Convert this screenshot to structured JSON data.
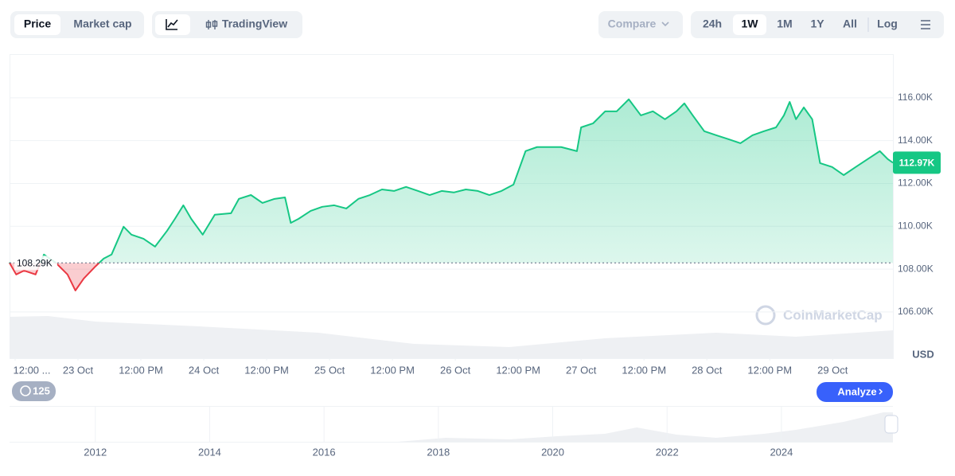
{
  "toolbar": {
    "price": "Price",
    "market_cap": "Market cap",
    "tradingview": "TradingView",
    "compare": "Compare",
    "ranges": [
      "24h",
      "1W",
      "1M",
      "1Y",
      "All"
    ],
    "log": "Log"
  },
  "chart_data": {
    "type": "line",
    "currency": "USD",
    "watermark": "CoinMarketCap",
    "x": [
      -13.1,
      -11.8,
      -10.3,
      -8.1,
      -6.5,
      -4.3,
      -2.0,
      -0.5,
      1.1,
      3.3,
      4.9,
      6.4,
      8.7,
      10.2,
      12.5,
      14.7,
      17.0,
      18.5,
      20.1,
      21.6,
      23.8,
      26.1,
      29.2,
      30.7,
      33.0,
      35.2,
      37.5,
      39.5,
      40.6,
      42.1,
      44.4,
      46.6,
      48.9,
      51.2,
      53.5,
      55.7,
      58.0,
      60.3,
      62.6,
      64.9,
      67.1,
      69.4,
      71.7,
      74.0,
      76.3,
      78.5,
      80.8,
      83.1,
      85.4,
      87.6,
      89.9,
      92.2,
      95.2,
      96.0,
      98.3,
      100.6,
      102.8,
      105.1,
      107.4,
      109.7,
      112.0,
      114.2,
      115.7,
      117.3,
      119.5,
      121.8,
      124.1,
      126.4,
      128.7,
      130.9,
      133.2,
      134.7,
      135.8,
      137.0,
      138.5,
      140.1,
      141.6,
      143.9,
      146.1,
      148.4,
      150.7,
      153.0,
      154.5,
      155.5
    ],
    "series": [
      {
        "name": "Price",
        "color": "#16c784",
        "negative_color": "#ea3943",
        "values": [
          108310,
          107750,
          107930,
          107750,
          108680,
          108310,
          107750,
          107000,
          107560,
          108120,
          108490,
          108680,
          109980,
          109610,
          109420,
          109050,
          109790,
          110350,
          110980,
          110350,
          109610,
          110540,
          110610,
          111280,
          111460,
          111090,
          111280,
          111350,
          110160,
          110350,
          110720,
          110910,
          110980,
          110830,
          111280,
          111460,
          111720,
          111650,
          111840,
          111650,
          111460,
          111650,
          111580,
          111720,
          111650,
          111460,
          111650,
          111950,
          113510,
          113700,
          113700,
          113700,
          113510,
          114620,
          114810,
          115370,
          115370,
          115930,
          115180,
          115370,
          115000,
          115370,
          115740,
          115180,
          114440,
          114250,
          114070,
          113880,
          114250,
          114440,
          114620,
          115180,
          115810,
          115000,
          115550,
          115000,
          112950,
          112770,
          112390,
          112770,
          113140,
          113510,
          113140,
          112970
        ]
      }
    ],
    "baseline": {
      "value": 108290,
      "label": "108.29K"
    },
    "last_price": {
      "value": 112970,
      "label": "112.97K"
    },
    "xlim": [
      -13.06,
      155.5
    ],
    "xticks": [
      {
        "value": -12,
        "label": "12:00 ..."
      },
      {
        "value": 0,
        "label": "23 Oct"
      },
      {
        "value": 12,
        "label": "12:00 PM"
      },
      {
        "value": 24,
        "label": "24 Oct"
      },
      {
        "value": 36,
        "label": "12:00 PM"
      },
      {
        "value": 48,
        "label": "25 Oct"
      },
      {
        "value": 60,
        "label": "12:00 PM"
      },
      {
        "value": 72,
        "label": "26 Oct"
      },
      {
        "value": 84,
        "label": "12:00 PM"
      },
      {
        "value": 96,
        "label": "27 Oct"
      },
      {
        "value": 108,
        "label": "12:00 PM"
      },
      {
        "value": 120,
        "label": "28 Oct"
      },
      {
        "value": 132,
        "label": "12:00 PM"
      },
      {
        "value": 144,
        "label": "29 Oct"
      }
    ],
    "ylim": [
      103840,
      118040
    ],
    "yticks": [
      {
        "value": 106000,
        "label": "106.00K"
      },
      {
        "value": 108000,
        "label": "108.00K"
      },
      {
        "value": 110000,
        "label": "110.00K"
      },
      {
        "value": 112000,
        "label": "112.00K"
      },
      {
        "value": 114000,
        "label": "114.00K"
      },
      {
        "value": 116000,
        "label": "116.00K"
      }
    ],
    "grid": true
  },
  "badge": "125",
  "analyze": "Analyze",
  "navigator": {
    "xlim": [
      2010.5,
      2025.95
    ],
    "xticks": [
      2012,
      2014,
      2016,
      2018,
      2020,
      2022,
      2024
    ]
  }
}
